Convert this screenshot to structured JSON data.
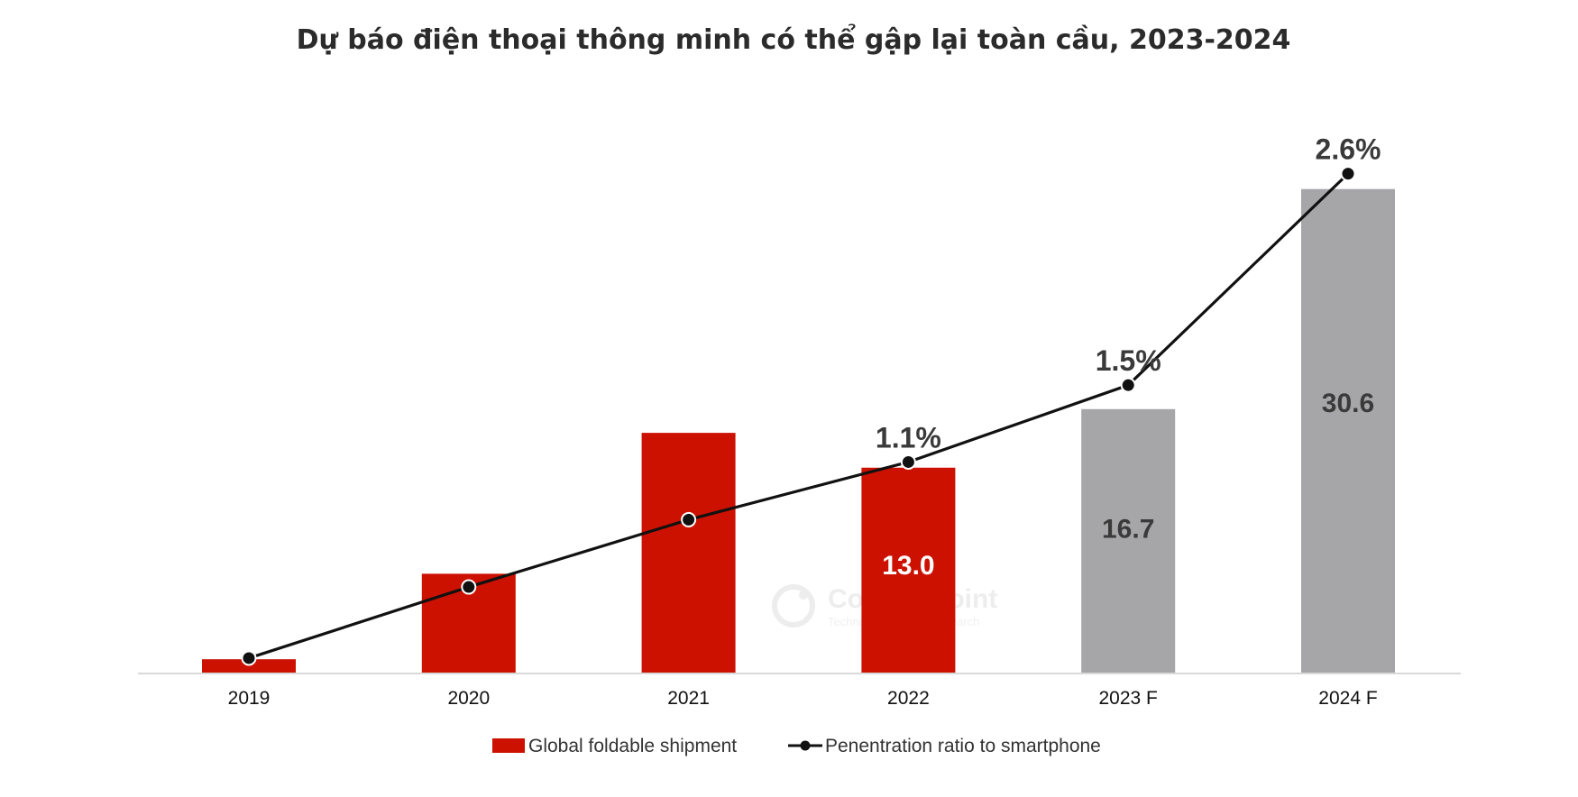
{
  "chart_data": {
    "type": "bar",
    "title": "Dự báo điện thoại thông minh có thể gập lại toàn cầu, 2023-2024",
    "categories": [
      "2019",
      "2020",
      "2021",
      "2022",
      "2023 F",
      "2024 F"
    ],
    "series": [
      {
        "name": "Global foldable shipment",
        "type": "bar",
        "values": [
          0.9,
          6.3,
          15.2,
          13.0,
          16.7,
          30.6
        ],
        "labels": [
          "",
          "",
          "",
          "13.0",
          "16.7",
          "30.6"
        ],
        "colors": [
          "#cc1100",
          "#cc1100",
          "#cc1100",
          "#cc1100",
          "#a6a6a8",
          "#a6a6a8"
        ],
        "label_colors": [
          "#ffffff",
          "#ffffff",
          "#ffffff",
          "#ffffff",
          "#3a3a3a",
          "#3a3a3a"
        ]
      },
      {
        "name": "Penentration ratio to smartphone",
        "type": "line",
        "values": [
          0.08,
          0.45,
          0.8,
          1.1,
          1.5,
          2.6
        ],
        "labels": [
          "",
          "",
          "",
          "1.1%",
          "1.5%",
          "2.6%"
        ]
      }
    ],
    "ylim_bar": [
      0,
      34
    ],
    "ylim_line": [
      0,
      2.8
    ],
    "xlabel": "",
    "ylabel": "",
    "legend_position": "bottom",
    "watermark": {
      "brand": "Counterpoint",
      "sub": "Technology Market Research"
    }
  }
}
